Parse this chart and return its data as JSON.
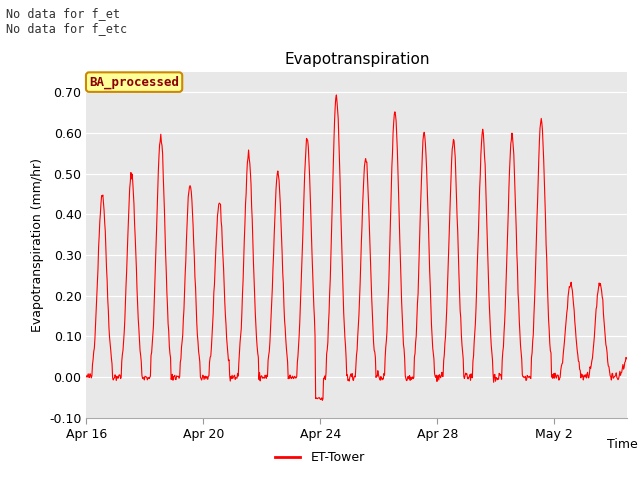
{
  "title": "Evapotranspiration",
  "ylabel": "Evapotranspiration (mm/hr)",
  "xlabel": "Time",
  "ylim": [
    -0.1,
    0.75
  ],
  "yticks": [
    -0.1,
    0.0,
    0.1,
    0.2,
    0.3,
    0.4,
    0.5,
    0.6,
    0.7
  ],
  "bg_color": "#e8e8e8",
  "line_color": "#ff0000",
  "text_no_data": [
    "No data for f_et",
    "No data for f_etc"
  ],
  "legend_box_label": "BA_processed",
  "legend_line_label": "ET-Tower",
  "tick_positions": [
    0,
    4,
    8,
    12,
    16
  ],
  "tick_labels": [
    "Apr 16",
    "Apr 20",
    "Apr 24",
    "Apr 28",
    "May 2"
  ],
  "n_days": 18.5,
  "day_peaks": [
    0.45,
    0.5,
    0.59,
    0.475,
    0.43,
    0.55,
    0.5,
    0.585,
    0.69,
    0.54,
    0.655,
    0.6,
    0.58,
    0.6,
    0.595,
    0.635,
    0.23,
    0.23,
    0.05
  ]
}
